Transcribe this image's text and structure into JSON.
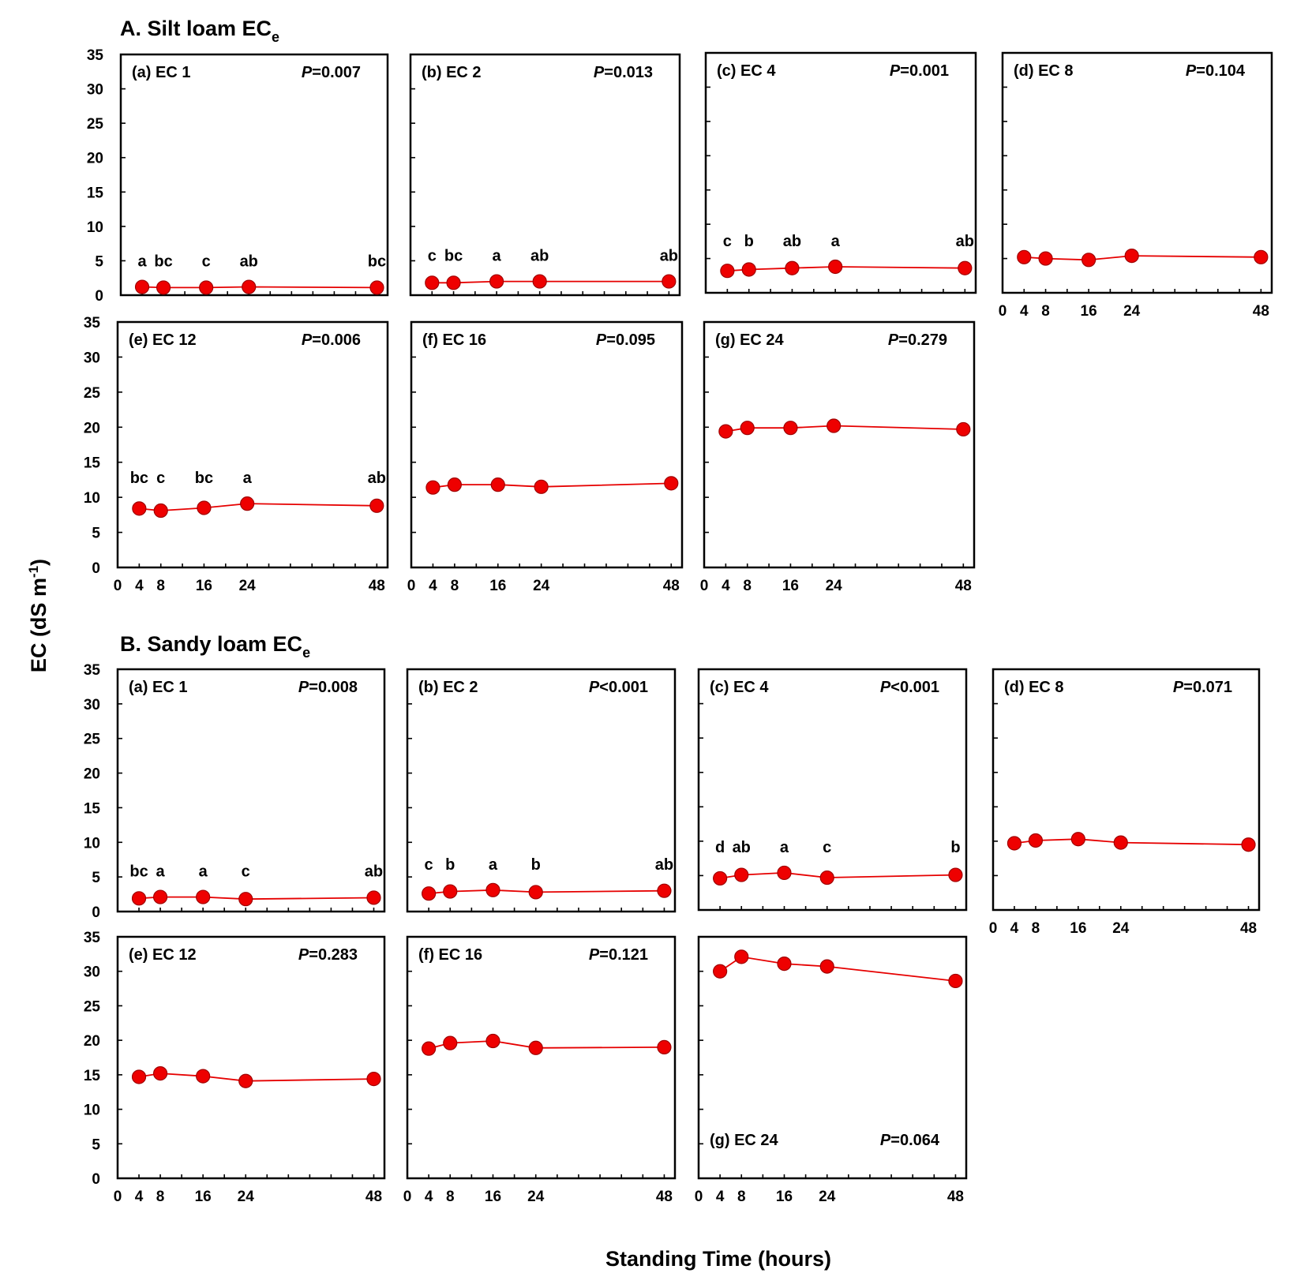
{
  "x_axis_title": "Standing Time (hours)",
  "y_axis_title": "EC (dS m",
  "y_axis_title_sup": "-1",
  "y_axis_title_end": ")",
  "x_tick_labels": [
    "0",
    "4",
    "8",
    "16",
    "24",
    "48"
  ],
  "y_tick_labels": [
    "0",
    "5",
    "10",
    "15",
    "20",
    "25",
    "30",
    "35"
  ],
  "colors": {
    "series": "#e60000",
    "marker": "#ee0000"
  },
  "chart_data": [
    {
      "section": "A",
      "section_title": "A. Silt loam EC",
      "section_title_sub": "e",
      "type": "line",
      "xlabel": "Standing Time (hours)",
      "ylabel": "EC (dS m-1)",
      "xlim": [
        0,
        50
      ],
      "ylim": [
        0,
        35
      ],
      "panels": [
        {
          "id": "a",
          "label": "(a) EC 1",
          "p_italic": "P",
          "p_value": "=0.007",
          "x": [
            4,
            8,
            16,
            24,
            48
          ],
          "y": [
            1.2,
            1.1,
            1.1,
            1.2,
            1.1
          ],
          "letters": [
            "a",
            "bc",
            "c",
            "ab",
            "bc"
          ]
        },
        {
          "id": "b",
          "label": "(b) EC 2",
          "p_italic": "P",
          "p_value": "=0.013",
          "x": [
            4,
            8,
            16,
            24,
            48
          ],
          "y": [
            1.8,
            1.8,
            2.0,
            2.0,
            2.0
          ],
          "letters": [
            "c",
            "bc",
            "a",
            "ab",
            "ab"
          ]
        },
        {
          "id": "c",
          "label": "(c) EC 4",
          "p_italic": "P",
          "p_value": "=0.001",
          "x": [
            4,
            8,
            16,
            24,
            48
          ],
          "y": [
            3.2,
            3.4,
            3.6,
            3.8,
            3.6
          ],
          "letters": [
            "c",
            "b",
            "ab",
            "a",
            "ab"
          ]
        },
        {
          "id": "d",
          "label": "(d) EC 8",
          "p_italic": "P",
          "p_value": "=0.104",
          "x": [
            4,
            8,
            16,
            24,
            48
          ],
          "y": [
            5.2,
            5.0,
            4.8,
            5.4,
            5.2
          ],
          "letters": []
        },
        {
          "id": "e",
          "label": "(e) EC 12",
          "p_italic": "P",
          "p_value": "=0.006",
          "x": [
            4,
            8,
            16,
            24,
            48
          ],
          "y": [
            8.4,
            8.1,
            8.5,
            9.1,
            8.8
          ],
          "letters": [
            "bc",
            "c",
            "bc",
            "a",
            "ab"
          ]
        },
        {
          "id": "f",
          "label": "(f) EC 16",
          "p_italic": "P",
          "p_value": "=0.095",
          "x": [
            4,
            8,
            16,
            24,
            48
          ],
          "y": [
            11.4,
            11.8,
            11.8,
            11.5,
            12.0
          ],
          "letters": []
        },
        {
          "id": "g",
          "label": "(g) EC 24",
          "p_italic": "P",
          "p_value": "=0.279",
          "x": [
            4,
            8,
            16,
            24,
            48
          ],
          "y": [
            19.4,
            19.9,
            19.9,
            20.2,
            19.7
          ],
          "letters": []
        }
      ]
    },
    {
      "section": "B",
      "section_title": "B. Sandy loam EC",
      "section_title_sub": "e",
      "type": "line",
      "xlabel": "Standing Time (hours)",
      "ylabel": "EC (dS m-1)",
      "xlim": [
        0,
        50
      ],
      "ylim": [
        0,
        35
      ],
      "panels": [
        {
          "id": "a",
          "label": "(a) EC 1",
          "p_italic": "P",
          "p_value": "=0.008",
          "x": [
            4,
            8,
            16,
            24,
            48
          ],
          "y": [
            1.9,
            2.1,
            2.1,
            1.8,
            2.0
          ],
          "letters": [
            "bc",
            "a",
            "a",
            "c",
            "ab"
          ]
        },
        {
          "id": "b",
          "label": "(b) EC 2",
          "p_italic": "P",
          "p_value": "<0.001",
          "x": [
            4,
            8,
            16,
            24,
            48
          ],
          "y": [
            2.6,
            2.9,
            3.1,
            2.8,
            3.0
          ],
          "letters": [
            "c",
            "b",
            "a",
            "b",
            "ab"
          ]
        },
        {
          "id": "c",
          "label": "(c) EC 4",
          "p_italic": "P",
          "p_value": "<0.001",
          "x": [
            4,
            8,
            16,
            24,
            48
          ],
          "y": [
            4.6,
            5.1,
            5.4,
            4.7,
            5.1
          ],
          "letters": [
            "d",
            "ab",
            "a",
            "c",
            "b"
          ]
        },
        {
          "id": "d",
          "label": "(d) EC 8",
          "p_italic": "P",
          "p_value": "=0.071",
          "x": [
            4,
            8,
            16,
            24,
            48
          ],
          "y": [
            9.7,
            10.1,
            10.3,
            9.8,
            9.5
          ],
          "letters": []
        },
        {
          "id": "e",
          "label": "(e) EC 12",
          "p_italic": "P",
          "p_value": "=0.283",
          "x": [
            4,
            8,
            16,
            24,
            48
          ],
          "y": [
            14.7,
            15.2,
            14.8,
            14.1,
            14.4
          ],
          "letters": []
        },
        {
          "id": "f",
          "label": "(f) EC 16",
          "p_italic": "P",
          "p_value": "=0.121",
          "x": [
            4,
            8,
            16,
            24,
            48
          ],
          "y": [
            18.8,
            19.6,
            19.9,
            18.9,
            19.0
          ],
          "letters": []
        },
        {
          "id": "g",
          "label": "(g) EC 24",
          "p_italic": "P",
          "p_value": "=0.064",
          "x": [
            4,
            8,
            16,
            24,
            48
          ],
          "y": [
            30.0,
            32.1,
            31.1,
            30.7,
            28.6
          ],
          "letters": []
        }
      ]
    }
  ]
}
